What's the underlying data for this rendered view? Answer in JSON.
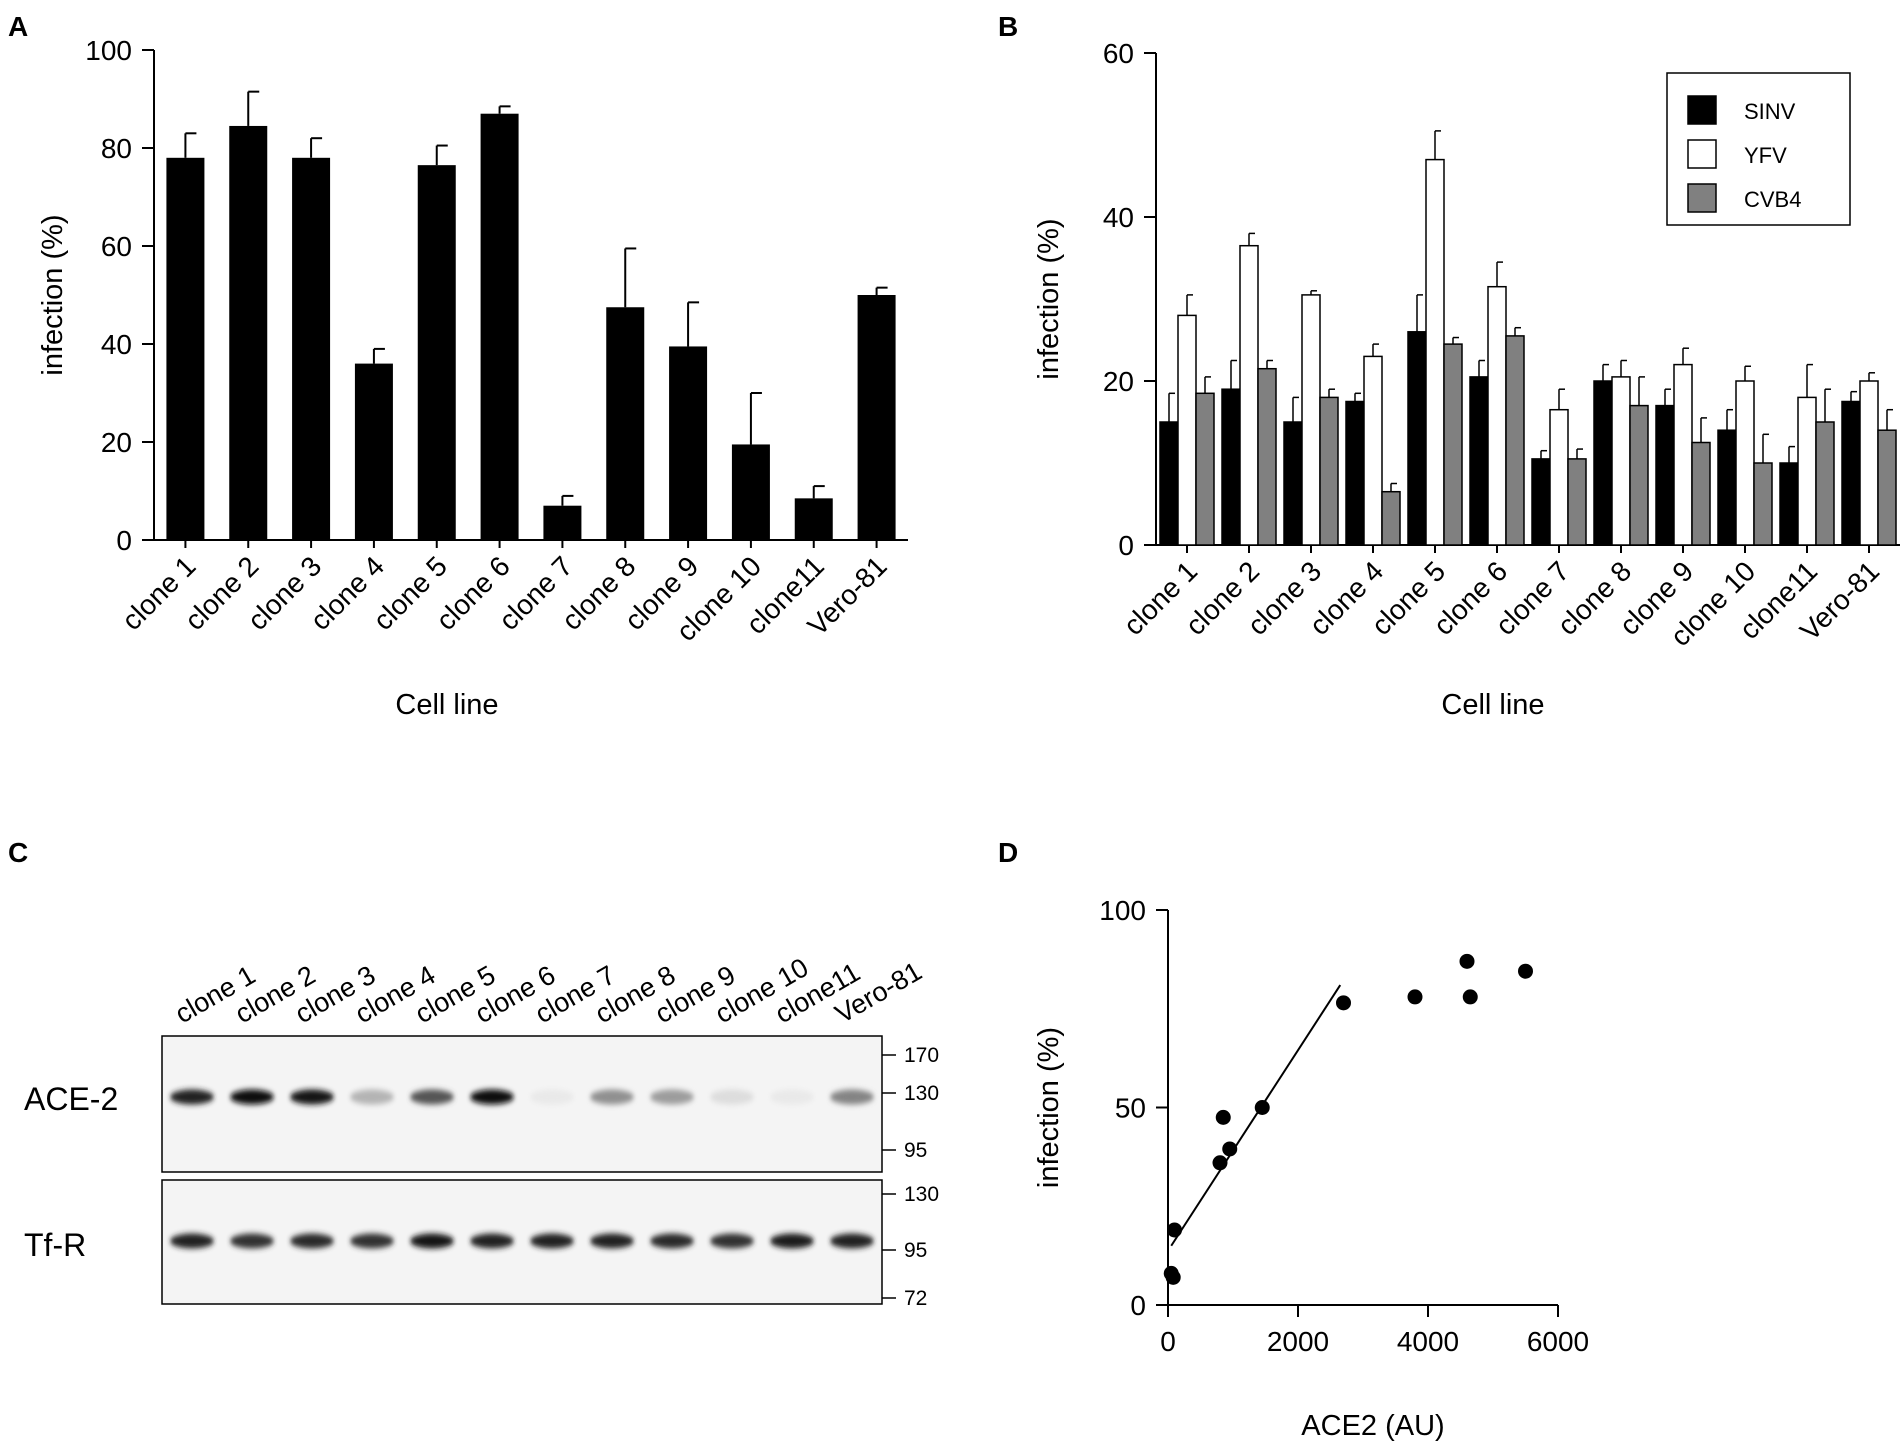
{
  "panels": {
    "A": "A",
    "B": "B",
    "C": "C",
    "D": "D"
  },
  "chart_data": [
    {
      "panel": "A",
      "type": "bar",
      "title": "",
      "xlabel": "Cell line",
      "ylabel": "infection (%)",
      "ylim": [
        0,
        100
      ],
      "yticks": [
        0,
        20,
        40,
        60,
        80,
        100
      ],
      "categories": [
        "clone 1",
        "clone 2",
        "clone 3",
        "clone 4",
        "clone 5",
        "clone 6",
        "clone 7",
        "clone 8",
        "clone 9",
        "clone 10",
        "clone11",
        "Vero-81"
      ],
      "values": [
        78,
        84.5,
        78,
        36,
        76.5,
        87,
        7,
        47.5,
        39.5,
        19.5,
        8.5,
        50
      ],
      "errors": [
        5,
        7,
        4,
        3,
        4,
        1.5,
        2,
        12,
        9,
        10.5,
        2.5,
        1.5
      ],
      "color": "#000000"
    },
    {
      "panel": "B",
      "type": "bar",
      "title": "",
      "xlabel": "Cell line",
      "ylabel": "infection (%)",
      "ylim": [
        0,
        60
      ],
      "yticks": [
        0,
        20,
        40,
        60
      ],
      "legend": "top-right",
      "categories": [
        "clone 1",
        "clone 2",
        "clone 3",
        "clone 4",
        "clone 5",
        "clone 6",
        "clone 7",
        "clone 8",
        "clone 9",
        "clone 10",
        "clone11",
        "Vero-81"
      ],
      "series": [
        {
          "name": "SINV",
          "color": "#000000",
          "values": [
            15,
            19,
            15,
            17.5,
            26,
            20.5,
            10.5,
            20,
            17,
            14,
            10,
            17.5
          ],
          "errors": [
            3.5,
            3.5,
            3,
            1,
            4.5,
            2,
            1,
            2,
            2,
            2.5,
            2,
            1.2
          ]
        },
        {
          "name": "YFV",
          "color": "#ffffff",
          "values": [
            28,
            36.5,
            30.5,
            23,
            47,
            31.5,
            16.5,
            20.5,
            22,
            20,
            18,
            20
          ],
          "errors": [
            2.5,
            1.5,
            0.5,
            1.5,
            3.5,
            3,
            2.5,
            2,
            2,
            1.8,
            4,
            1
          ]
        },
        {
          "name": "CVB4",
          "color": "#808080",
          "values": [
            18.5,
            21.5,
            18,
            6.5,
            24.5,
            25.5,
            10.5,
            17,
            12.5,
            10,
            15,
            14
          ],
          "errors": [
            2,
            1,
            1,
            1,
            0.8,
            1,
            1.2,
            3.5,
            3,
            3.5,
            4,
            2.5
          ]
        }
      ]
    },
    {
      "panel": "D",
      "type": "scatter",
      "title": "",
      "xlabel": "ACE2 (AU)",
      "ylabel": "infection (%)",
      "xlim": [
        0,
        6000
      ],
      "ylim": [
        0,
        100
      ],
      "xticks": [
        0,
        2000,
        4000,
        6000
      ],
      "yticks": [
        0,
        50,
        100
      ],
      "points": [
        {
          "x": 50,
          "y": 8
        },
        {
          "x": 80,
          "y": 7
        },
        {
          "x": 100,
          "y": 19
        },
        {
          "x": 800,
          "y": 36
        },
        {
          "x": 850,
          "y": 47.5
        },
        {
          "x": 950,
          "y": 39.5
        },
        {
          "x": 1450,
          "y": 50
        },
        {
          "x": 2700,
          "y": 76.5
        },
        {
          "x": 3800,
          "y": 78
        },
        {
          "x": 4600,
          "y": 87
        },
        {
          "x": 4650,
          "y": 78
        },
        {
          "x": 5500,
          "y": 84.5
        }
      ],
      "fit_line": {
        "x": [
          50,
          2650
        ],
        "y": [
          15,
          81
        ]
      }
    }
  ],
  "western_blot": {
    "lanes": [
      "clone 1",
      "clone 2",
      "clone 3",
      "clone 4",
      "clone 5",
      "clone 6",
      "clone 7",
      "clone 8",
      "clone 9",
      "clone 10",
      "clone11",
      "Vero-81"
    ],
    "blots": [
      {
        "label": "ACE-2",
        "markers": [
          "170",
          "130",
          "95"
        ],
        "band_intensity": [
          0.85,
          0.95,
          0.9,
          0.25,
          0.65,
          0.95,
          0.03,
          0.4,
          0.35,
          0.08,
          0.03,
          0.45
        ]
      },
      {
        "label": "Tf-R",
        "markers": [
          "130",
          "95",
          "72"
        ],
        "band_intensity": [
          0.85,
          0.8,
          0.82,
          0.8,
          0.9,
          0.85,
          0.85,
          0.85,
          0.82,
          0.8,
          0.88,
          0.85
        ]
      }
    ]
  }
}
